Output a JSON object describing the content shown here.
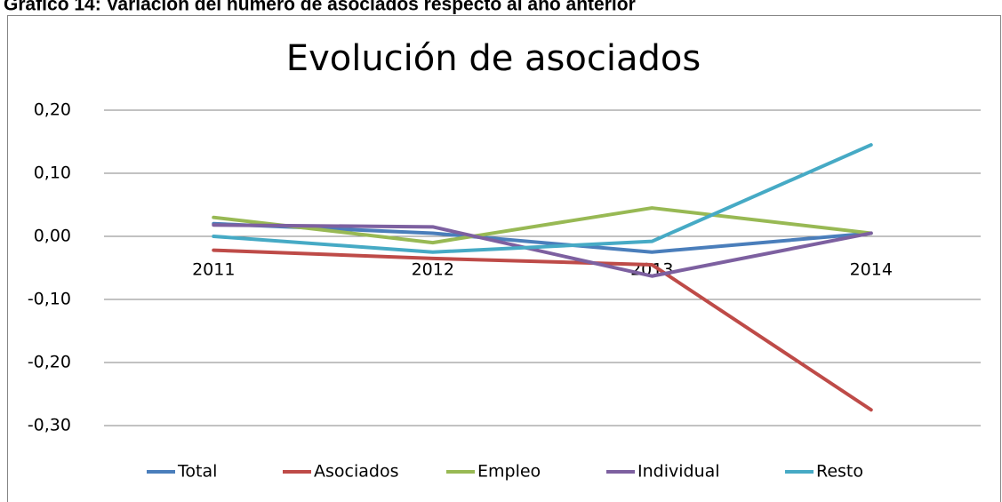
{
  "header": "Gráfico 14: Variación del número de asociados respecto al año anterior",
  "chart_data": {
    "type": "line",
    "title": "Evolución de asociados",
    "categories": [
      "2011",
      "2012",
      "2013",
      "2014"
    ],
    "series": [
      {
        "name": "Total",
        "color": "#4a7ebb",
        "values": [
          0.02,
          0.005,
          -0.025,
          0.005
        ]
      },
      {
        "name": "Asociados",
        "color": "#be4b48",
        "values": [
          -0.022,
          -0.035,
          -0.045,
          -0.275
        ]
      },
      {
        "name": "Empleo",
        "color": "#98b954",
        "values": [
          0.03,
          -0.01,
          0.045,
          0.005
        ]
      },
      {
        "name": "Individual",
        "color": "#7d60a0",
        "values": [
          0.018,
          0.015,
          -0.063,
          0.005
        ]
      },
      {
        "name": "Resto",
        "color": "#46aac5",
        "values": [
          0.0,
          -0.025,
          -0.008,
          0.145
        ]
      }
    ],
    "ylim": [
      -0.3,
      0.2
    ],
    "yticks": [
      {
        "value": 0.2,
        "label": "0,20"
      },
      {
        "value": 0.1,
        "label": "0,10"
      },
      {
        "value": 0,
        "label": "0,00"
      },
      {
        "value": -0.1,
        "label": "-0,10"
      },
      {
        "value": -0.2,
        "label": "-0,20"
      },
      {
        "value": -0.3,
        "label": "-0,30"
      }
    ],
    "grid": true,
    "legend": "bottom"
  }
}
